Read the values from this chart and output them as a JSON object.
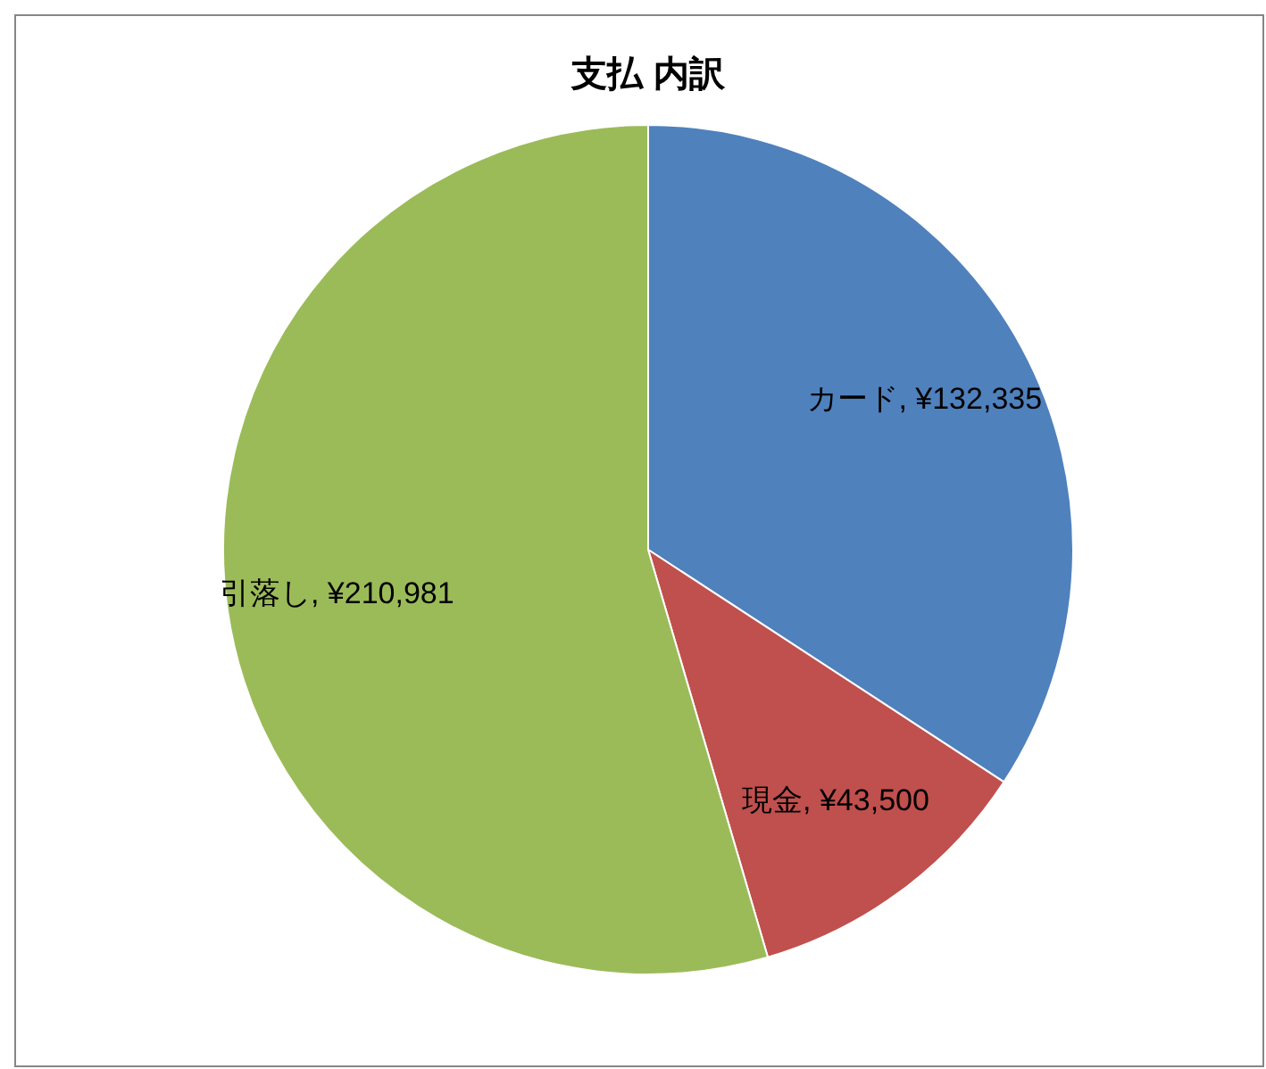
{
  "chart_data": {
    "type": "pie",
    "title": "支払 内訳",
    "categories": [
      "カード",
      "現金",
      "引落し"
    ],
    "values": [
      132335,
      43500,
      210981
    ],
    "colors": [
      "#4f81bd",
      "#c0504d",
      "#9bbb59"
    ],
    "value_labels": [
      "¥132,335",
      "¥43,500",
      "¥210,981"
    ]
  }
}
